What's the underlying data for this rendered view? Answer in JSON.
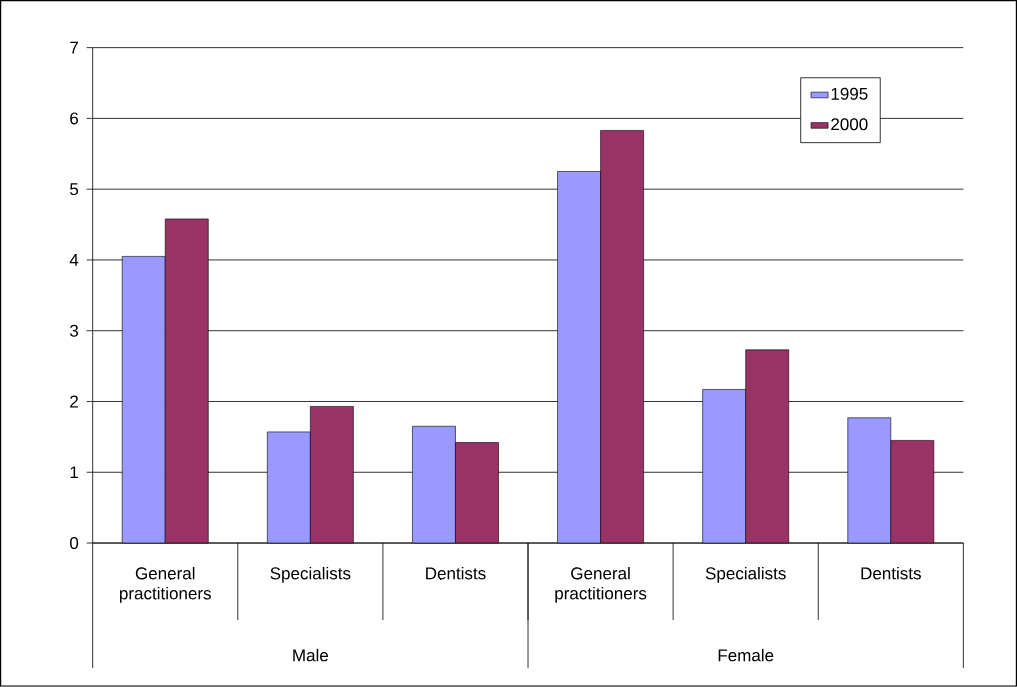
{
  "chart_data": {
    "type": "bar",
    "categories": [
      "General practitioners",
      "Specialists",
      "Dentists",
      "General practitioners",
      "Specialists",
      "Dentists"
    ],
    "series": [
      {
        "name": "1995",
        "color": "#9999ff",
        "values": [
          4.05,
          1.57,
          1.65,
          5.25,
          2.17,
          1.77
        ]
      },
      {
        "name": "2000",
        "color": "#993366",
        "values": [
          4.58,
          1.93,
          1.42,
          5.83,
          2.73,
          1.45
        ]
      }
    ],
    "ylim": [
      0,
      7
    ],
    "yticks": [
      0,
      1,
      2,
      3,
      4,
      5,
      6,
      7
    ],
    "grid": "y",
    "legend": "top right",
    "annotations": [
      "Male",
      "Female"
    ]
  }
}
